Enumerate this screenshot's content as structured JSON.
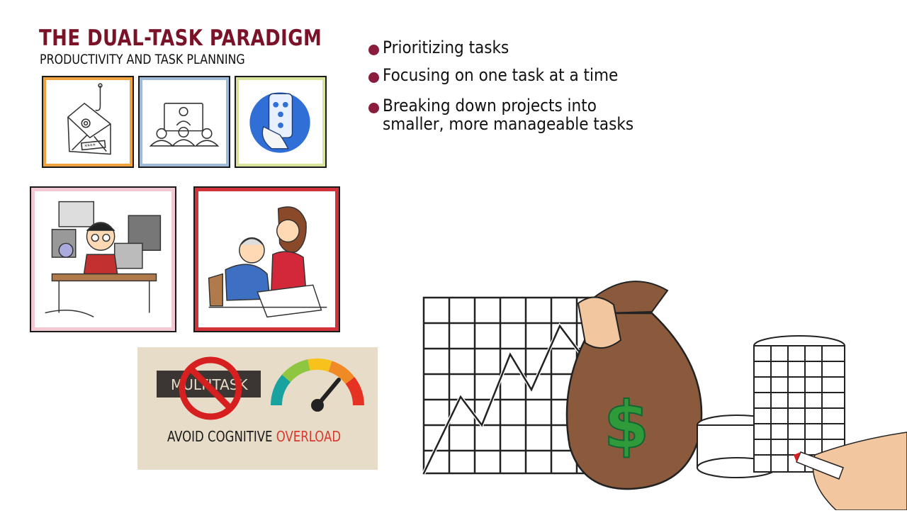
{
  "header": {
    "title": "THE DUAL-TASK PARADIGM",
    "subtitle": "PRODUCTIVITY AND TASK PLANNING"
  },
  "bullets": [
    {
      "text": "Prioritizing tasks"
    },
    {
      "text": "Focusing on one task at a time"
    },
    {
      "line1": "Breaking down projects into",
      "line2": "smaller, more manageable tasks"
    }
  ],
  "banner": {
    "tag": "MULTITASK",
    "avoid_label": "AVOID COGNITIVE",
    "overload_label": "OVERLOAD"
  },
  "illustrations": {
    "email": "email-phishing-icon",
    "meeting": "meeting-presentation-icon",
    "phone": "phone-contacts-icon",
    "overwhelmed": "overwhelmed-worker-illustration",
    "collab": "elderly-helper-illustration",
    "growth": "money-growth-illustration"
  },
  "colors": {
    "title": "#7a1328",
    "bullet": "#8a1d3d",
    "overload": "#d63a2f",
    "money": "#2f9a3a",
    "bag": "#8b5a3c"
  }
}
